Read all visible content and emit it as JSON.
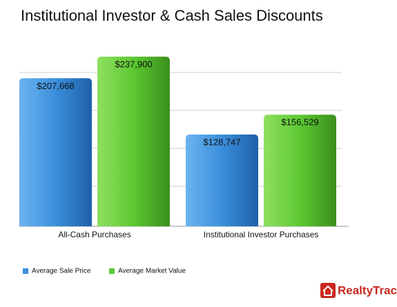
{
  "chart_data": {
    "type": "bar",
    "title": "Institutional Investor & Cash Sales Discounts",
    "categories": [
      "All-Cash Purchases",
      "Institutional Investor Purchases"
    ],
    "series": [
      {
        "name": "Average Sale Price",
        "color": "#3a8fdc",
        "values": [
          207668,
          128747
        ],
        "value_labels": [
          "$207,668",
          "$128,747"
        ]
      },
      {
        "name": "Average Market Value",
        "color": "#5cc832",
        "values": [
          237900,
          156529
        ],
        "value_labels": [
          "$237,900",
          "$156,529"
        ]
      }
    ],
    "ylim": [
      0,
      300000
    ],
    "grid": true,
    "legend": "bottom-left"
  },
  "brand": "RealtyTrac"
}
